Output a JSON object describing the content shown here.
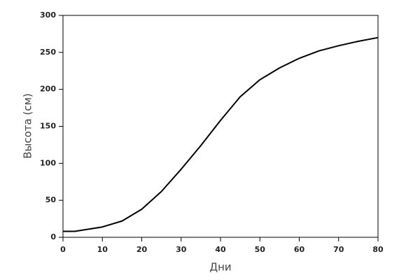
{
  "chart_data": {
    "type": "line",
    "x_label": "Дни",
    "y_label": "Высота (см)",
    "x": [
      0,
      3,
      10,
      15,
      20,
      25,
      30,
      35,
      40,
      45,
      50,
      55,
      60,
      65,
      70,
      75,
      80
    ],
    "series": [
      {
        "color": "#000000",
        "values": [
          8,
          8,
          14,
          22,
          38,
          62,
          92,
          124,
          158,
          190,
          213,
          229,
          242,
          252,
          259,
          265,
          270
        ]
      }
    ],
    "xlim": [
      0,
      80
    ],
    "xticks": [
      0,
      10,
      20,
      30,
      40,
      50,
      60,
      70,
      80
    ],
    "ylim": [
      0,
      300
    ],
    "yticks": [
      0,
      50,
      100,
      150,
      200,
      250,
      300
    ]
  }
}
